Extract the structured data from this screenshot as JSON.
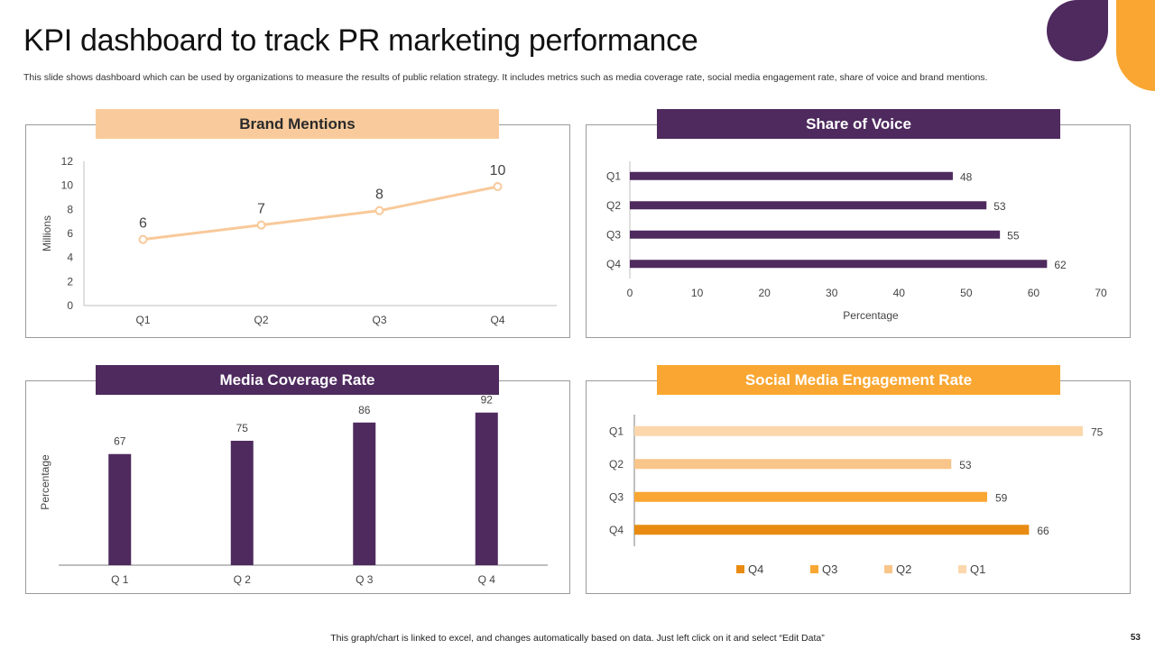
{
  "page": {
    "title": "KPI dashboard to track PR marketing performance",
    "subtitle": "This slide shows dashboard which can be used by organizations to measure the results of public relation strategy. It includes metrics such as media coverage rate, social media engagement rate, share of voice and brand mentions.",
    "footer": "This graph/chart is linked to excel,  and changes automatically based on data. Just left click on it and select “Edit Data”",
    "page_number": "53"
  },
  "colors": {
    "purple": "#4e2a5e",
    "orange": "#f9a732",
    "peach": "#f8c99a",
    "light_orange_header": "#f9cb9c",
    "dark_orange": "#e98b12",
    "pale_peach": "#fbd7ab"
  },
  "panels": {
    "brand_mentions": {
      "header": "Brand Mentions"
    },
    "share_of_voice": {
      "header": "Share of Voice"
    },
    "media_coverage": {
      "header": "Media Coverage Rate"
    },
    "social_media": {
      "header": "Social Media Engagement Rate"
    }
  },
  "chart_data": [
    {
      "id": "brand_mentions",
      "type": "line",
      "title": "Brand Mentions",
      "categories": [
        "Q1",
        "Q2",
        "Q3",
        "Q4"
      ],
      "values": [
        5.5,
        6.7,
        7.9,
        9.9
      ],
      "data_labels": [
        "6",
        "7",
        "8",
        "10"
      ],
      "ylabel": "Millions",
      "xlabel": "",
      "ylim": [
        0,
        12
      ],
      "yticks": [
        "0",
        "2",
        "4",
        "6",
        "8",
        "10",
        "12"
      ],
      "grid": false
    },
    {
      "id": "share_of_voice",
      "type": "bar",
      "orientation": "horizontal",
      "title": "Share of Voice",
      "categories": [
        "Q1",
        "Q2",
        "Q3",
        "Q4"
      ],
      "values": [
        48,
        53,
        55,
        62
      ],
      "data_labels": [
        "48",
        "53",
        "55",
        "62"
      ],
      "xlabel": "Percentage",
      "ylabel": "",
      "xlim": [
        0,
        70
      ],
      "xticks": [
        "0",
        "10",
        "20",
        "30",
        "40",
        "50",
        "60",
        "70"
      ],
      "grid": false
    },
    {
      "id": "media_coverage",
      "type": "bar",
      "orientation": "vertical",
      "title": "Media Coverage Rate",
      "categories": [
        "Q 1",
        "Q 2",
        "Q 3",
        "Q 4"
      ],
      "values": [
        67,
        75,
        86,
        92
      ],
      "data_labels": [
        "67",
        "75",
        "86",
        "92"
      ],
      "ylabel": "Percentage",
      "xlabel": "",
      "ylim": [
        0,
        100
      ],
      "grid": false
    },
    {
      "id": "social_media",
      "type": "bar",
      "orientation": "horizontal",
      "title": "Social Media Engagement Rate",
      "categories": [
        "Q1",
        "Q2",
        "Q3",
        "Q4"
      ],
      "values": [
        75,
        53,
        59,
        66
      ],
      "data_labels": [
        "75",
        "53",
        "59",
        "66"
      ],
      "bar_colors": [
        "#fbd7ab",
        "#f8c58a",
        "#f9a732",
        "#e98b12"
      ],
      "legend": [
        "Q4",
        "Q3",
        "Q2",
        "Q1"
      ],
      "legend_colors": [
        "#e98b12",
        "#f9a732",
        "#f8c58a",
        "#fbd7ab"
      ],
      "legend_position": "bottom",
      "xlim": [
        0,
        100
      ],
      "xlabel": "",
      "ylabel": "",
      "grid": false
    }
  ]
}
